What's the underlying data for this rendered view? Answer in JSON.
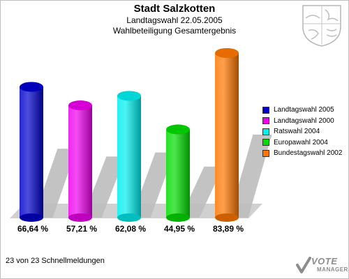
{
  "header": {
    "title": "Stadt Salzkotten",
    "subtitle1": "Landtagswahl 22.05.2005",
    "subtitle2": "Wahlbeteiligung Gesamtergebnis"
  },
  "chart_data": {
    "type": "bar",
    "title": "Stadt Salzkotten",
    "subtitle": "Landtagswahl 22.05.2005 — Wahlbeteiligung Gesamtergebnis",
    "categories": [
      "Landtagswahl 2005",
      "Landtagswahl 2000",
      "Ratswahl 2004",
      "Europawahl 2004",
      "Bundestagswahl 2002"
    ],
    "values": [
      66.64,
      57.21,
      62.08,
      44.95,
      83.89
    ],
    "value_labels": [
      "66,64 %",
      "57,21 %",
      "62,08 %",
      "44,95 %",
      "83,89 %"
    ],
    "colors": [
      "#0000cc",
      "#ee00ee",
      "#00eeee",
      "#00dd00",
      "#ff7700"
    ],
    "xlabel": "",
    "ylabel": "",
    "ylim": [
      0,
      100
    ],
    "grid": false,
    "legend": "right"
  },
  "footer": {
    "status": "23 von 23 Schnellmeldungen"
  },
  "logo": {
    "line1": "VOTE",
    "line2": "MANAGER"
  }
}
